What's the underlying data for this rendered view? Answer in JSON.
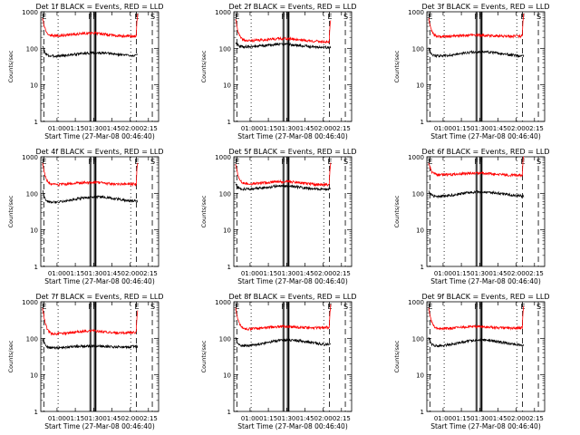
{
  "figure": {
    "title_template": "{det} BLACK = Events, RED = LLD",
    "xlabel": "Start Time (27-Mar-08 00:46:40)",
    "ylabel": "Counts/sec",
    "x_ticks": [
      "01:00",
      "01:15",
      "01:30",
      "01:45",
      "02:00",
      "02:15"
    ],
    "y_ticks": [
      "1",
      "10",
      "100",
      "1000"
    ],
    "marker_labels": [
      "E",
      "F",
      "F",
      "E",
      "S"
    ],
    "colors": {
      "events": "#000000",
      "lld": "#ff0000",
      "axes": "#000000",
      "background": "#ffffff"
    }
  },
  "chart_data": [
    {
      "type": "line",
      "title": "Det 1f BLACK = Events, RED = LLD",
      "detector": "Det 1f",
      "x_unit": "minutes since 00:46:40",
      "ylim": [
        1,
        1000
      ],
      "yscale": "log",
      "series": [
        {
          "name": "Events",
          "color": "#000000",
          "shape": "hump",
          "start": 120,
          "level": 60,
          "peak": 75,
          "end": 65
        },
        {
          "name": "LLD",
          "color": "#ff0000",
          "shape": "flat",
          "start": 700,
          "level": 220,
          "peak": 260,
          "end": 210
        }
      ]
    },
    {
      "type": "line",
      "title": "Det 2f BLACK = Events, RED = LLD",
      "detector": "Det 2f",
      "ylim": [
        1,
        1000
      ],
      "yscale": "log",
      "series": [
        {
          "name": "Events",
          "color": "#000000",
          "shape": "flat",
          "start": 150,
          "level": 110,
          "peak": 130,
          "end": 105
        },
        {
          "name": "LLD",
          "color": "#ff0000",
          "shape": "flat",
          "start": 650,
          "level": 160,
          "peak": 185,
          "end": 150
        }
      ]
    },
    {
      "type": "line",
      "title": "Det 3f BLACK = Events, RED = LLD",
      "detector": "Det 3f",
      "ylim": [
        1,
        1000
      ],
      "yscale": "log",
      "series": [
        {
          "name": "Events",
          "color": "#000000",
          "shape": "hump",
          "start": 110,
          "level": 60,
          "peak": 80,
          "end": 60
        },
        {
          "name": "LLD",
          "color": "#ff0000",
          "shape": "flat",
          "start": 700,
          "level": 210,
          "peak": 230,
          "end": 215
        }
      ]
    },
    {
      "type": "line",
      "title": "Det 4f BLACK = Events, RED = LLD",
      "detector": "Det 4f",
      "ylim": [
        1,
        1000
      ],
      "yscale": "log",
      "series": [
        {
          "name": "Events",
          "color": "#000000",
          "shape": "hump",
          "start": 120,
          "level": 55,
          "peak": 80,
          "end": 65
        },
        {
          "name": "LLD",
          "color": "#ff0000",
          "shape": "flat",
          "start": 700,
          "level": 170,
          "peak": 200,
          "end": 180
        }
      ]
    },
    {
      "type": "line",
      "title": "Det 5f BLACK = Events, RED = LLD",
      "detector": "Det 5f",
      "ylim": [
        1,
        1000
      ],
      "yscale": "log",
      "series": [
        {
          "name": "Events",
          "color": "#000000",
          "shape": "flat",
          "start": 180,
          "level": 130,
          "peak": 160,
          "end": 130
        },
        {
          "name": "LLD",
          "color": "#ff0000",
          "shape": "flat",
          "start": 650,
          "level": 180,
          "peak": 210,
          "end": 170
        }
      ]
    },
    {
      "type": "line",
      "title": "Det 6f BLACK = Events, RED = LLD",
      "detector": "Det 6f",
      "ylim": [
        1,
        1000
      ],
      "yscale": "log",
      "series": [
        {
          "name": "Events",
          "color": "#000000",
          "shape": "hump",
          "start": 120,
          "level": 80,
          "peak": 110,
          "end": 85
        },
        {
          "name": "LLD",
          "color": "#ff0000",
          "shape": "flat",
          "start": 700,
          "level": 320,
          "peak": 360,
          "end": 310
        }
      ]
    },
    {
      "type": "line",
      "title": "Det 7f BLACK = Events, RED = LLD",
      "detector": "Det 7f",
      "ylim": [
        1,
        1000
      ],
      "yscale": "log",
      "series": [
        {
          "name": "Events",
          "color": "#000000",
          "shape": "flat",
          "start": 100,
          "level": 55,
          "peak": 62,
          "end": 60
        },
        {
          "name": "LLD",
          "color": "#ff0000",
          "shape": "flat",
          "start": 700,
          "level": 130,
          "peak": 160,
          "end": 145
        }
      ]
    },
    {
      "type": "line",
      "title": "Det 8f BLACK = Events, RED = LLD",
      "detector": "Det 8f",
      "ylim": [
        1,
        1000
      ],
      "yscale": "log",
      "series": [
        {
          "name": "Events",
          "color": "#000000",
          "shape": "hump",
          "start": 110,
          "level": 60,
          "peak": 90,
          "end": 70
        },
        {
          "name": "LLD",
          "color": "#ff0000",
          "shape": "flat",
          "start": 700,
          "level": 180,
          "peak": 210,
          "end": 200
        }
      ]
    },
    {
      "type": "line",
      "title": "Det 9f BLACK = Events, RED = LLD",
      "detector": "Det 9f",
      "ylim": [
        1,
        1000
      ],
      "yscale": "log",
      "series": [
        {
          "name": "Events",
          "color": "#000000",
          "shape": "hump",
          "start": 110,
          "level": 60,
          "peak": 90,
          "end": 65
        },
        {
          "name": "LLD",
          "color": "#ff0000",
          "shape": "flat",
          "start": 700,
          "level": 180,
          "peak": 210,
          "end": 195
        }
      ]
    }
  ]
}
